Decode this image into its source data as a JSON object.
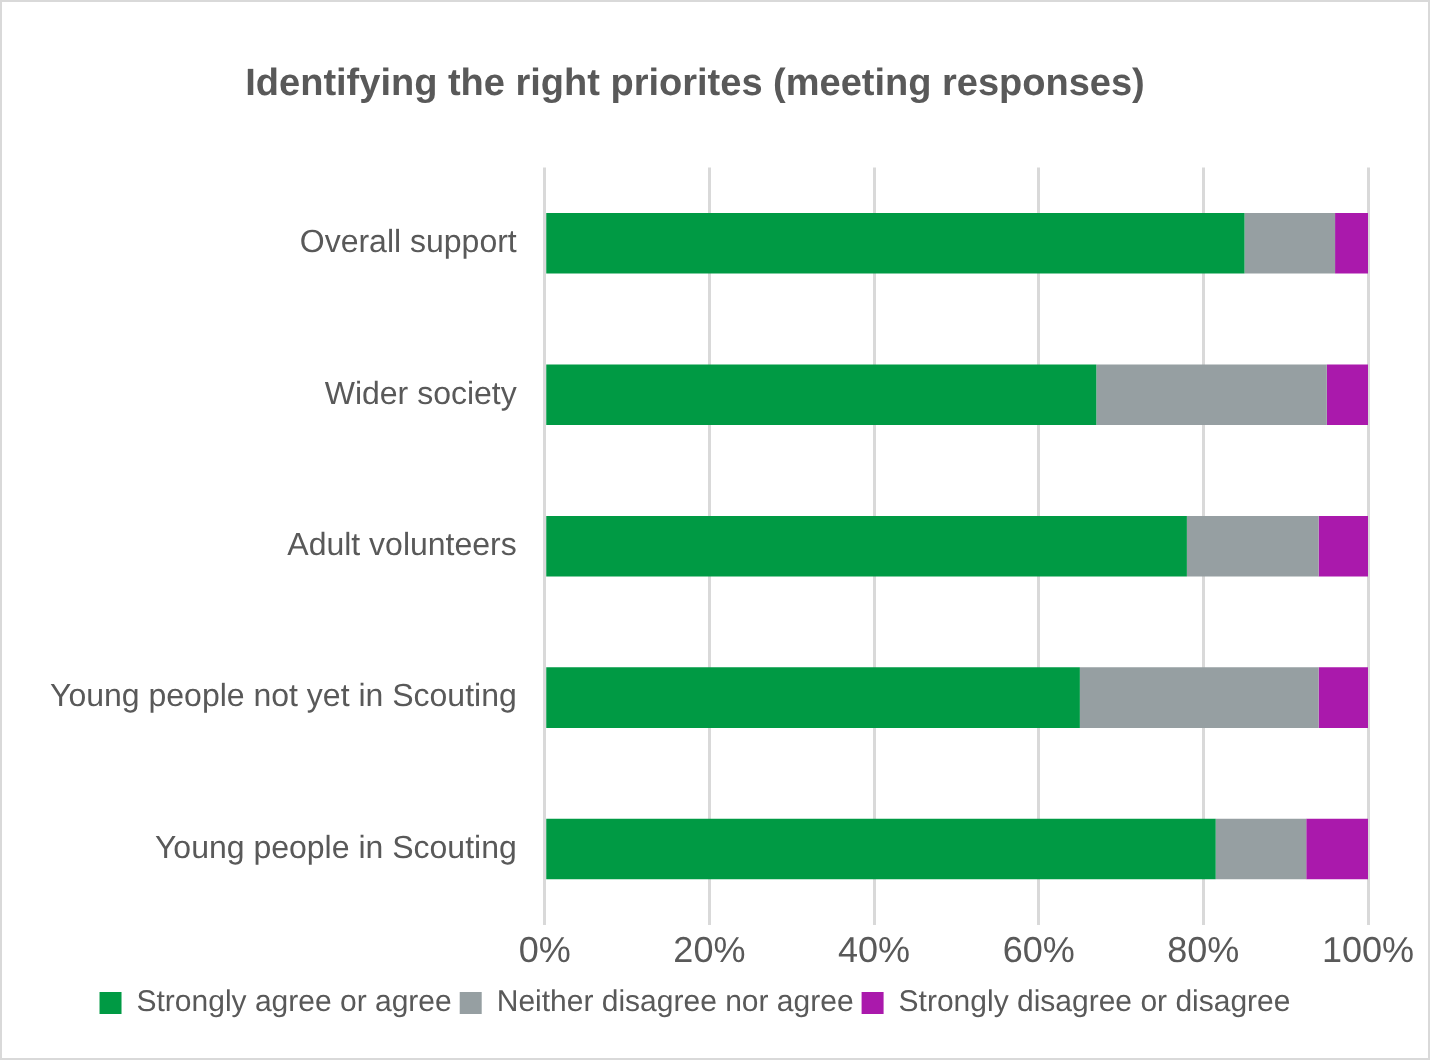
{
  "chart_data": {
    "type": "bar",
    "orientation": "horizontal",
    "stacked": true,
    "title": "Identifying the right priorites (meeting responses)",
    "categories": [
      "Overall support",
      "Wider society",
      "Adult volunteers",
      "Young people not yet in Scouting",
      "Young people in Scouting"
    ],
    "series": [
      {
        "name": "Strongly agree or agree",
        "color": "#009a44",
        "values": [
          85,
          67,
          78,
          65,
          81.5
        ]
      },
      {
        "name": "Neither disagree nor agree",
        "color": "#969fa2",
        "values": [
          11,
          28,
          16,
          29,
          11
        ]
      },
      {
        "name": "Strongly disagree or disagree",
        "color": "#aa19ac",
        "values": [
          4,
          5,
          6,
          6,
          7.5
        ]
      }
    ],
    "xlim": [
      0,
      100
    ],
    "xticks": [
      {
        "value": 0,
        "label": "0%"
      },
      {
        "value": 20,
        "label": "20%"
      },
      {
        "value": 40,
        "label": "40%"
      },
      {
        "value": 60,
        "label": "60%"
      },
      {
        "value": 80,
        "label": "80%"
      },
      {
        "value": 100,
        "label": "100%"
      }
    ],
    "grid": "x",
    "legend": "bottom"
  }
}
